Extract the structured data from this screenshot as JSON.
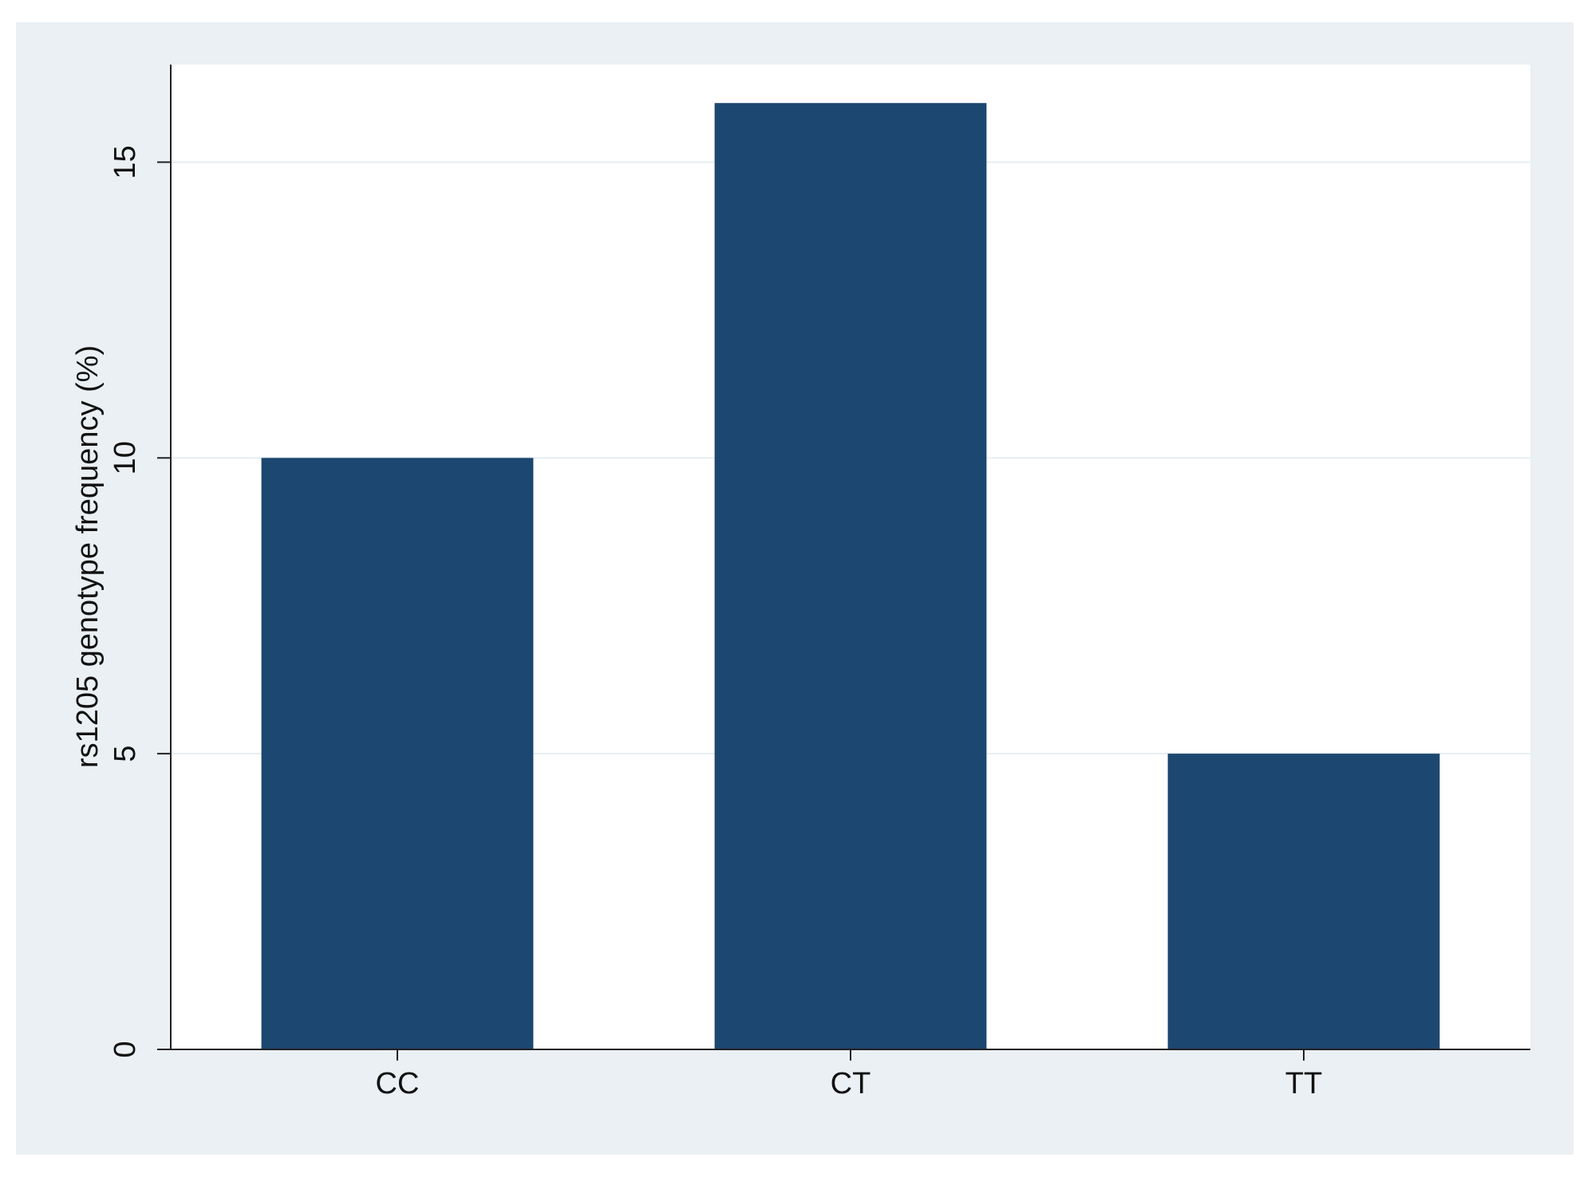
{
  "chart_data": {
    "type": "bar",
    "y_label": "rs1205 genotype frequency (%)",
    "categories": [
      "CC",
      "CT",
      "TT"
    ],
    "values": [
      10,
      16,
      5
    ],
    "color": "#1c4770",
    "ylim": [
      0,
      16.65
    ],
    "yticks": [
      0,
      5,
      10,
      15
    ],
    "grid": true
  }
}
